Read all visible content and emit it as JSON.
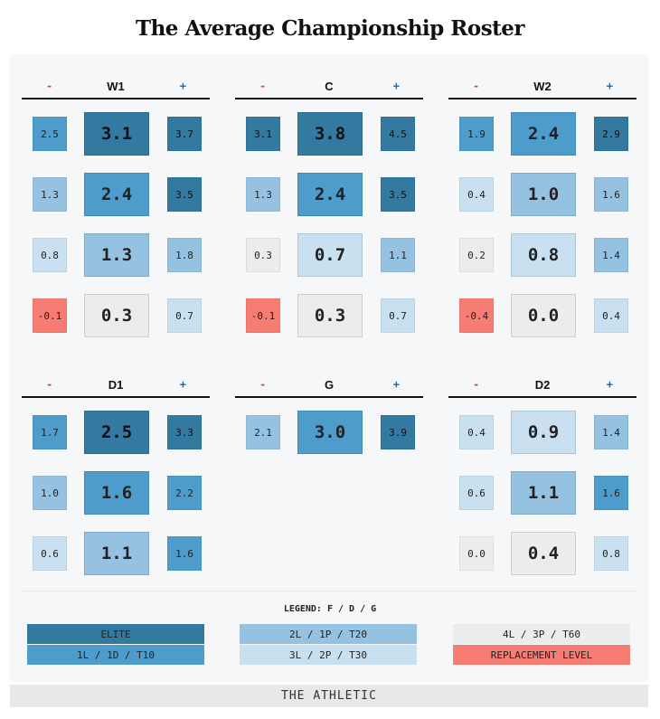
{
  "title": "The Average Championship Roster",
  "colors": {
    "elite": "#3479a0",
    "tier1": "#4e9ccb",
    "tier2": "#95c2e1",
    "tier3": "#c8e0ef",
    "tier4": "#ececec",
    "replacement": "#f77c73",
    "accent_minus": "#e04040",
    "accent_plus": "#2a6ea0"
  },
  "groups": [
    {
      "name": "W1",
      "minus": "-",
      "plus": "+",
      "rows": [
        {
          "left": "2.5",
          "mid": "3.1",
          "right": "3.7",
          "lt": "tier1",
          "mt": "elite",
          "rt": "elite"
        },
        {
          "left": "1.3",
          "mid": "2.4",
          "right": "3.5",
          "lt": "tier2",
          "mt": "tier1",
          "rt": "elite"
        },
        {
          "left": "0.8",
          "mid": "1.3",
          "right": "1.8",
          "lt": "tier3",
          "mt": "tier2",
          "rt": "tier2"
        },
        {
          "left": "-0.1",
          "mid": "0.3",
          "right": "0.7",
          "lt": "replacement",
          "mt": "tier4",
          "rt": "tier3"
        }
      ]
    },
    {
      "name": "C",
      "minus": "-",
      "plus": "+",
      "rows": [
        {
          "left": "3.1",
          "mid": "3.8",
          "right": "4.5",
          "lt": "elite",
          "mt": "elite",
          "rt": "elite"
        },
        {
          "left": "1.3",
          "mid": "2.4",
          "right": "3.5",
          "lt": "tier2",
          "mt": "tier1",
          "rt": "elite"
        },
        {
          "left": "0.3",
          "mid": "0.7",
          "right": "1.1",
          "lt": "tier4",
          "mt": "tier3",
          "rt": "tier2"
        },
        {
          "left": "-0.1",
          "mid": "0.3",
          "right": "0.7",
          "lt": "replacement",
          "mt": "tier4",
          "rt": "tier3"
        }
      ]
    },
    {
      "name": "W2",
      "minus": "-",
      "plus": "+",
      "rows": [
        {
          "left": "1.9",
          "mid": "2.4",
          "right": "2.9",
          "lt": "tier1",
          "mt": "tier1",
          "rt": "elite"
        },
        {
          "left": "0.4",
          "mid": "1.0",
          "right": "1.6",
          "lt": "tier3",
          "mt": "tier2",
          "rt": "tier2"
        },
        {
          "left": "0.2",
          "mid": "0.8",
          "right": "1.4",
          "lt": "tier4",
          "mt": "tier3",
          "rt": "tier2"
        },
        {
          "left": "-0.4",
          "mid": "0.0",
          "right": "0.4",
          "lt": "replacement",
          "mt": "tier4",
          "rt": "tier3"
        }
      ]
    },
    {
      "name": "D1",
      "minus": "-",
      "plus": "+",
      "rows": [
        {
          "left": "1.7",
          "mid": "2.5",
          "right": "3.3",
          "lt": "tier1",
          "mt": "elite",
          "rt": "elite"
        },
        {
          "left": "1.0",
          "mid": "1.6",
          "right": "2.2",
          "lt": "tier2",
          "mt": "tier1",
          "rt": "tier1"
        },
        {
          "left": "0.6",
          "mid": "1.1",
          "right": "1.6",
          "lt": "tier3",
          "mt": "tier2",
          "rt": "tier1"
        }
      ]
    },
    {
      "name": "G",
      "minus": "-",
      "plus": "+",
      "rows": [
        {
          "left": "2.1",
          "mid": "3.0",
          "right": "3.9",
          "lt": "tier2",
          "mt": "tier1",
          "rt": "elite"
        }
      ]
    },
    {
      "name": "D2",
      "minus": "-",
      "plus": "+",
      "rows": [
        {
          "left": "0.4",
          "mid": "0.9",
          "right": "1.4",
          "lt": "tier3",
          "mt": "tier3",
          "rt": "tier2"
        },
        {
          "left": "0.6",
          "mid": "1.1",
          "right": "1.6",
          "lt": "tier3",
          "mt": "tier2",
          "rt": "tier1"
        },
        {
          "left": "0.0",
          "mid": "0.4",
          "right": "0.8",
          "lt": "tier4",
          "mt": "tier4",
          "rt": "tier3"
        }
      ]
    }
  ],
  "legend": {
    "title": "LEGEND: F / D / G",
    "items": [
      {
        "label": "ELITE",
        "tier": "elite"
      },
      {
        "label": "1L / 1D / T10",
        "tier": "tier1"
      },
      {
        "label": "2L / 1P / T20",
        "tier": "tier2"
      },
      {
        "label": "3L / 2P / T30",
        "tier": "tier3"
      },
      {
        "label": "4L / 3P / T60",
        "tier": "tier4"
      },
      {
        "label": "REPLACEMENT LEVEL",
        "tier": "replacement"
      }
    ]
  },
  "footer": "THE ATHLETIC"
}
